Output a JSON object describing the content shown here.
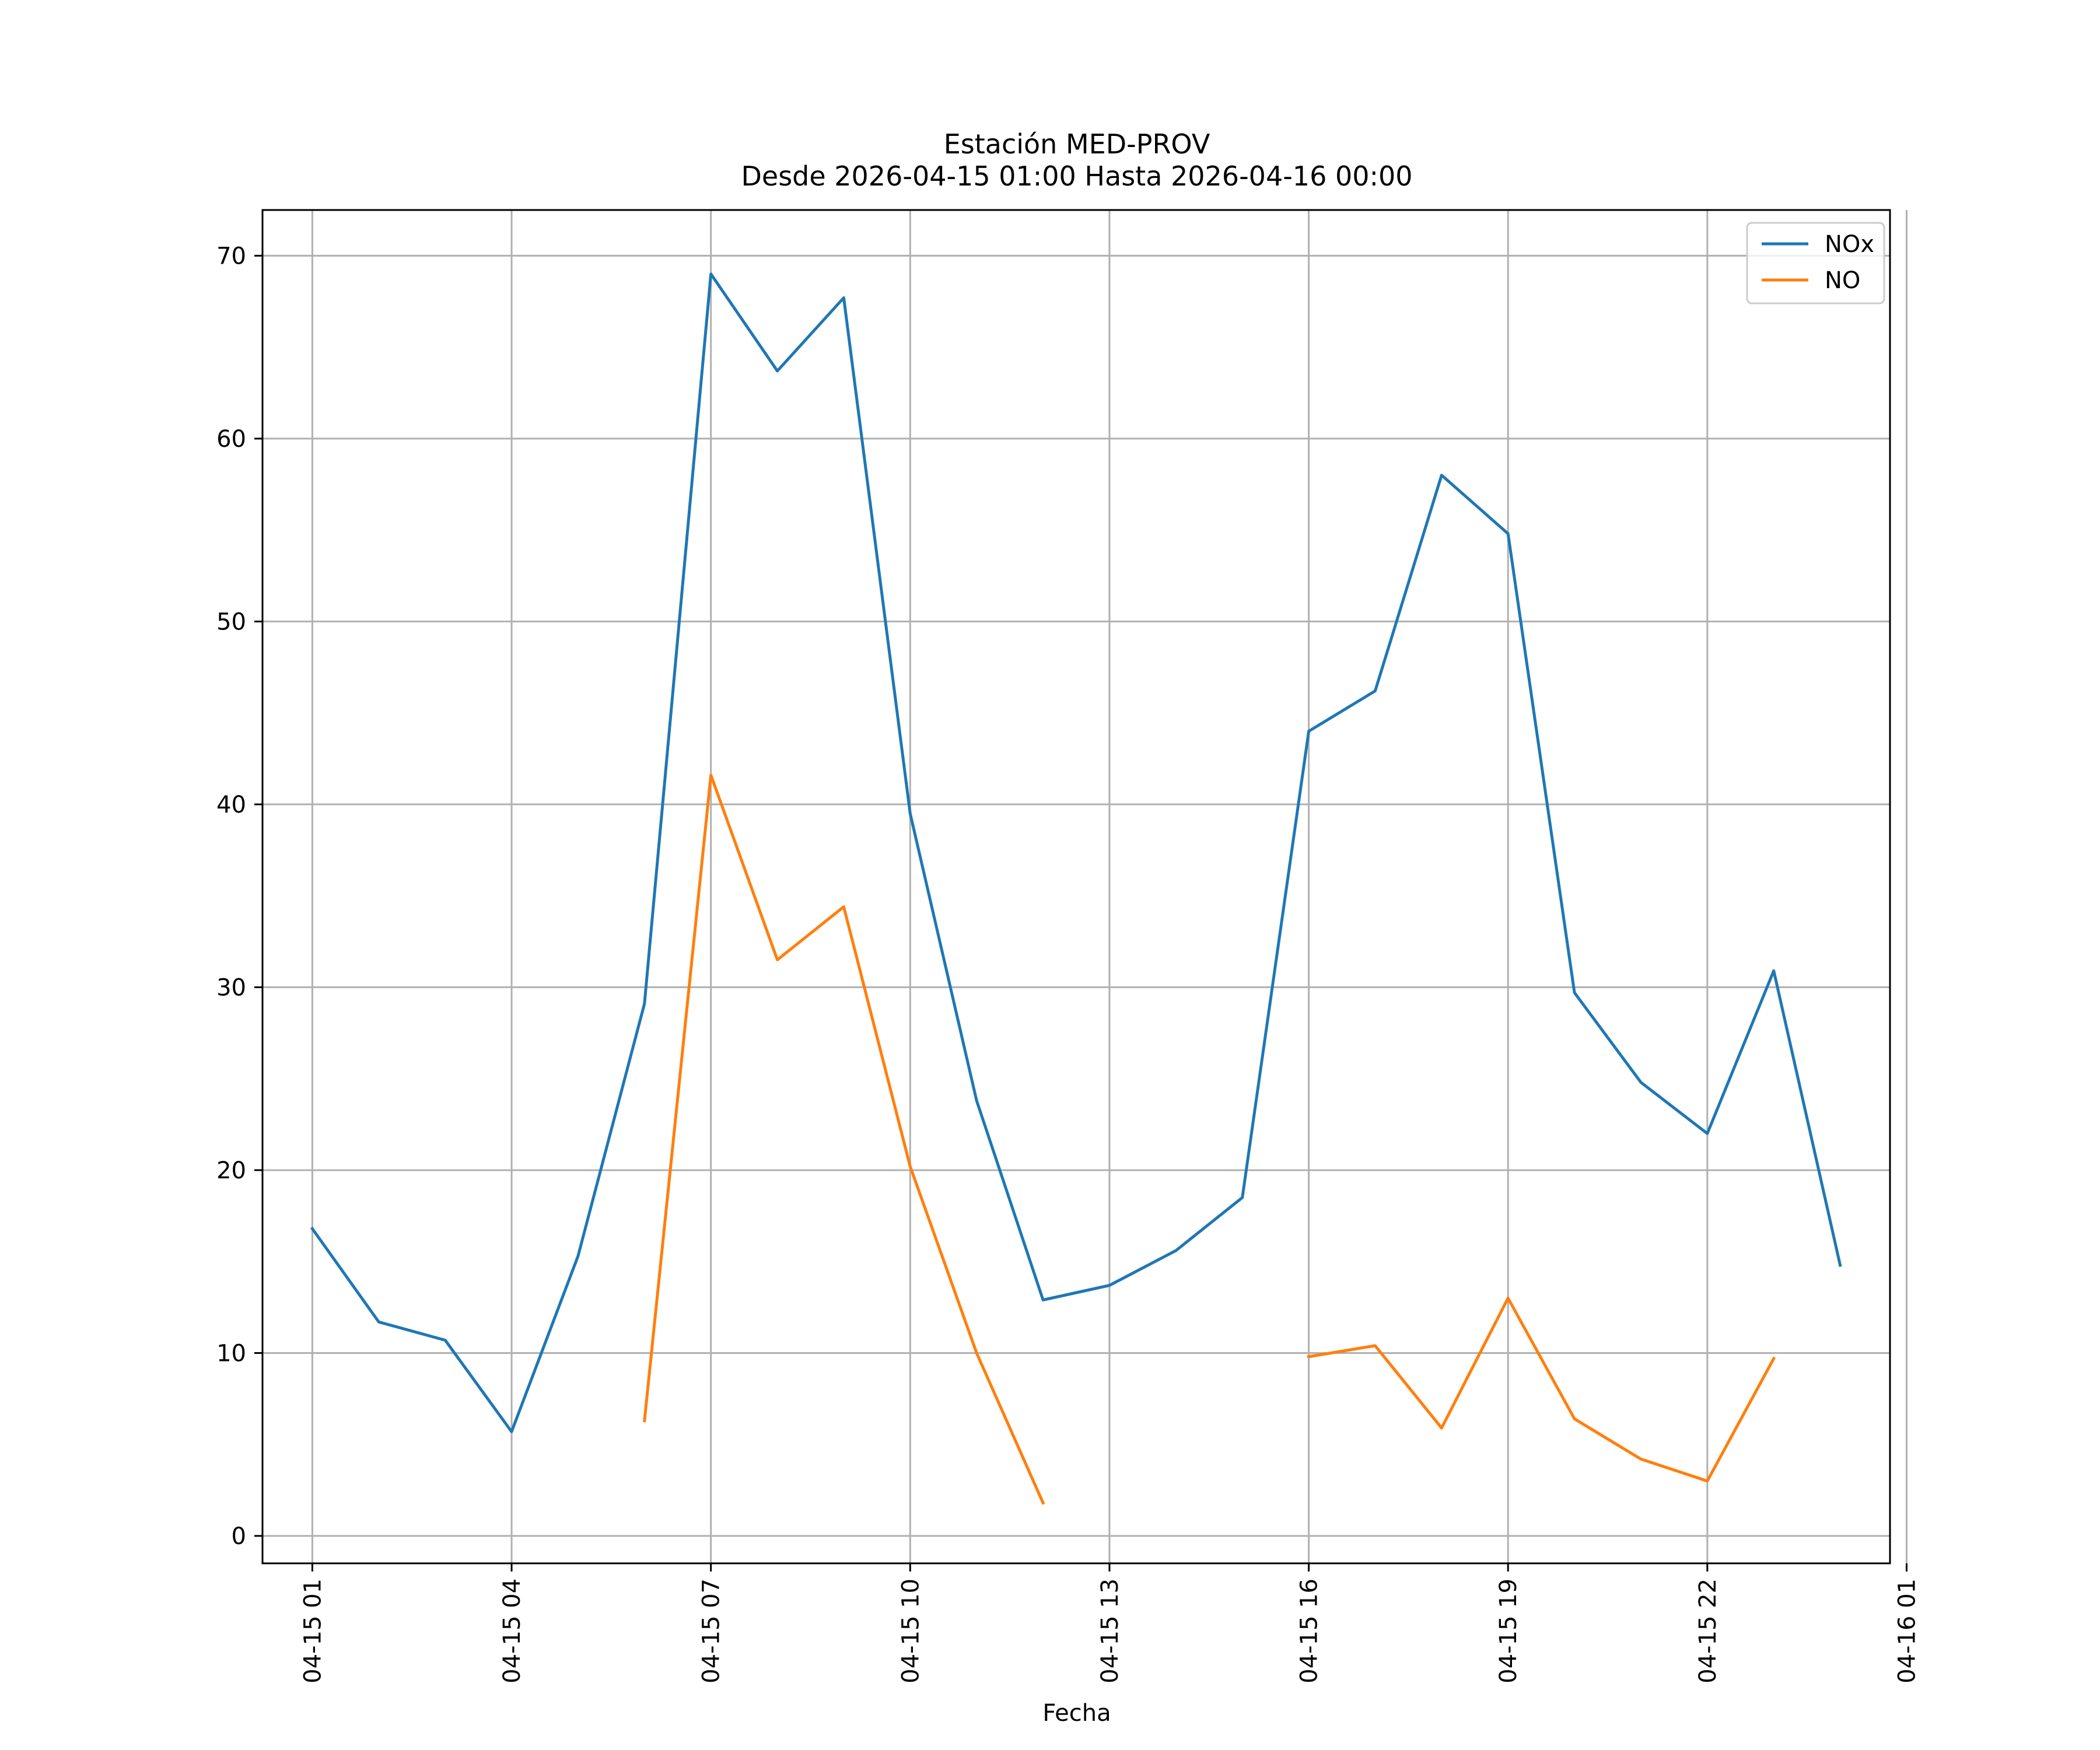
{
  "chart_data": {
    "type": "line",
    "title": "Estación MED-PROV",
    "subtitle": "Desde 2026-04-15 01:00 Hasta 2026-04-16 00:00",
    "xlabel": "Fecha",
    "ylabel": "",
    "x": [
      "04-15 01:00",
      "04-15 02:00",
      "04-15 03:00",
      "04-15 04:00",
      "04-15 05:00",
      "04-15 06:00",
      "04-15 07:00",
      "04-15 08:00",
      "04-15 09:00",
      "04-15 10:00",
      "04-15 11:00",
      "04-15 12:00",
      "04-15 13:00",
      "04-15 14:00",
      "04-15 15:00",
      "04-15 16:00",
      "04-15 17:00",
      "04-15 18:00",
      "04-15 19:00",
      "04-15 20:00",
      "04-15 21:00",
      "04-15 22:00",
      "04-15 23:00",
      "04-16 00:00"
    ],
    "xlim": [
      "04-15 00:15",
      "04-16 00:45"
    ],
    "ylim": [
      -1.5,
      72.5
    ],
    "x_ticks": [
      "04-15 01",
      "04-15 04",
      "04-15 07",
      "04-15 10",
      "04-15 13",
      "04-15 16",
      "04-15 19",
      "04-15 22",
      "04-16 01"
    ],
    "y_ticks": [
      "0",
      "10",
      "20",
      "30",
      "40",
      "50",
      "60",
      "70"
    ],
    "grid": true,
    "legend_position": "top-right",
    "series": [
      {
        "name": "NOx",
        "color": "#1f77b4",
        "values": [
          16.8,
          11.7,
          10.7,
          5.7,
          15.3,
          29.1,
          69.0,
          63.7,
          67.7,
          39.5,
          23.8,
          12.9,
          13.7,
          15.6,
          18.5,
          44.0,
          46.2,
          58.0,
          54.8,
          29.7,
          24.8,
          22.0,
          30.9,
          14.8
        ]
      },
      {
        "name": "NO",
        "color": "#ff7f0e",
        "values": [
          null,
          null,
          null,
          null,
          null,
          6.3,
          41.6,
          31.5,
          34.4,
          20.2,
          10.0,
          1.8,
          null,
          null,
          null,
          9.8,
          10.4,
          5.9,
          13.0,
          6.4,
          4.2,
          3.0,
          9.7,
          null
        ]
      }
    ]
  }
}
